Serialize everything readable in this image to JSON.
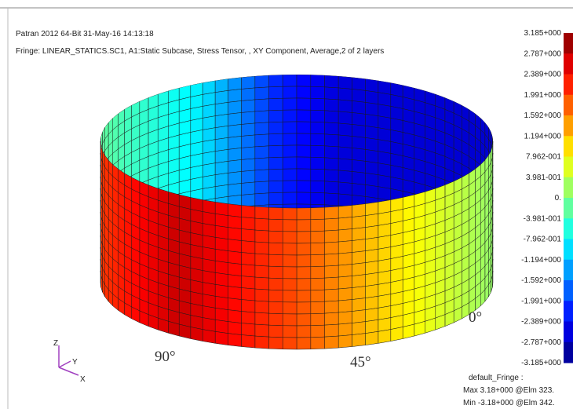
{
  "header": {
    "title": "Patran 2012 64-Bit 31-May-16 14:13:18",
    "subtitle": "Fringe: LINEAR_STATICS.SC1, A1:Static Subcase, Stress Tensor, , XY Component, Average,2 of 2 layers"
  },
  "legend": {
    "labels": [
      "3.185+000",
      "2.787+000",
      "2.389+000",
      "1.991+000",
      "1.592+000",
      "1.194+000",
      "7.962-001",
      "3.981-001",
      "0.",
      "-3.981-001",
      "-7.962-001",
      "-1.194+000",
      "-1.592+000",
      "-1.991+000",
      "-2.389+000",
      "-2.787+000",
      "-3.185+000"
    ]
  },
  "angles": [
    "90°",
    "45°",
    "0°"
  ],
  "triad": [
    "Z",
    "Y",
    "X"
  ],
  "footer": [
    "default_Fringe :",
    "Max 3.18+000 @Elm 323.",
    "Min -3.18+000 @Elm 342."
  ]
}
